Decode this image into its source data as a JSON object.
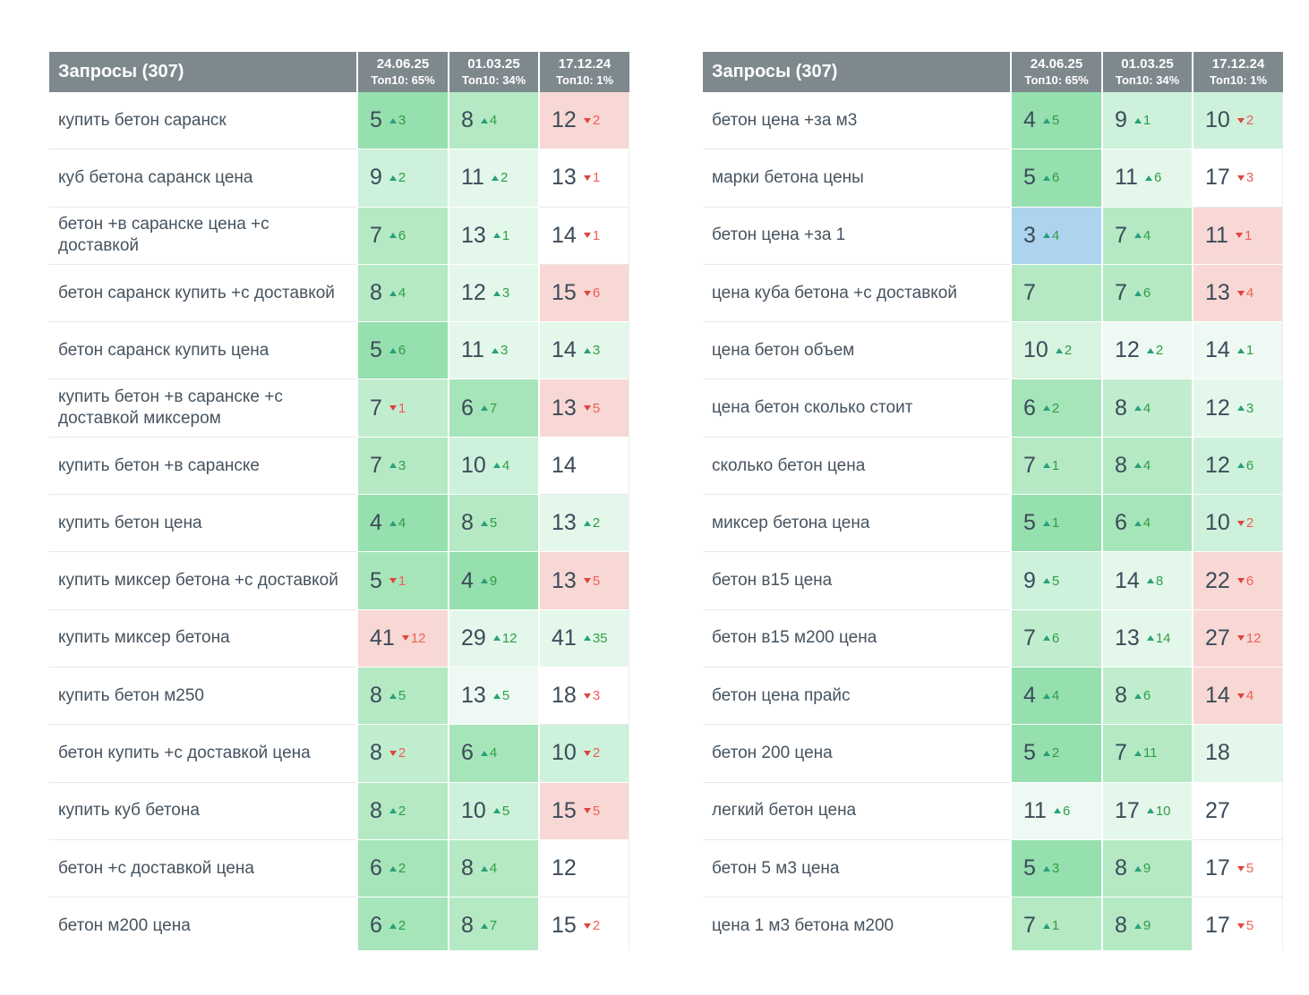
{
  "header": {
    "queries_label": "Запросы (307)",
    "columns": [
      {
        "date": "24.06.25",
        "top10": "Топ10: 65%"
      },
      {
        "date": "01.03.25",
        "top10": "Топ10: 34%"
      },
      {
        "date": "17.12.24",
        "top10": "Топ10: 1%"
      }
    ]
  },
  "colors": {
    "header_bg": "#7e898d",
    "header_text": "#ffffff",
    "query_text": "#46535f",
    "position_text": "#3c4b59",
    "up_arrow": "#28a177",
    "up_change": "#2f9e44",
    "down_arrow": "#e0443e",
    "down_change": "#ee6057",
    "row_border": "#e7e9eb",
    "cell_bg": {
      "blue": "#aed3ee",
      "g1": "#96dfae",
      "g1b": "#a6e5ba",
      "g2": "#b4e9c4",
      "g2l": "#c0edce",
      "g3": "#cdf1da",
      "g3l": "#d8f4e1",
      "g4": "#e4f7eb",
      "g5": "#edf9f2",
      "white": "#ffffff",
      "pink": "#f8d8d4"
    }
  },
  "tables": [
    {
      "rows": [
        {
          "query": "купить бетон саранск",
          "cells": [
            {
              "pos": "5",
              "dir": "up",
              "chg": "3",
              "bg": "g1"
            },
            {
              "pos": "8",
              "dir": "up",
              "chg": "4",
              "bg": "g2"
            },
            {
              "pos": "12",
              "dir": "down",
              "chg": "2",
              "bg": "pink"
            }
          ]
        },
        {
          "query": "куб бетона саранск цена",
          "cells": [
            {
              "pos": "9",
              "dir": "up",
              "chg": "2",
              "bg": "g3"
            },
            {
              "pos": "11",
              "dir": "up",
              "chg": "2",
              "bg": "g4"
            },
            {
              "pos": "13",
              "dir": "down",
              "chg": "1",
              "bg": "white"
            }
          ]
        },
        {
          "query": "бетон +в саранске цена +с доставкой",
          "cells": [
            {
              "pos": "7",
              "dir": "up",
              "chg": "6",
              "bg": "g2"
            },
            {
              "pos": "13",
              "dir": "up",
              "chg": "1",
              "bg": "g4"
            },
            {
              "pos": "14",
              "dir": "down",
              "chg": "1",
              "bg": "white"
            }
          ]
        },
        {
          "query": "бетон саранск купить +с доставкой",
          "cells": [
            {
              "pos": "8",
              "dir": "up",
              "chg": "4",
              "bg": "g2"
            },
            {
              "pos": "12",
              "dir": "up",
              "chg": "3",
              "bg": "g4"
            },
            {
              "pos": "15",
              "dir": "down",
              "chg": "6",
              "bg": "pink"
            }
          ]
        },
        {
          "query": "бетон саранск купить цена",
          "cells": [
            {
              "pos": "5",
              "dir": "up",
              "chg": "6",
              "bg": "g1"
            },
            {
              "pos": "11",
              "dir": "up",
              "chg": "3",
              "bg": "g4"
            },
            {
              "pos": "14",
              "dir": "up",
              "chg": "3",
              "bg": "g4"
            }
          ]
        },
        {
          "query": "купить бетон +в саранске +с доставкой миксером",
          "cells": [
            {
              "pos": "7",
              "dir": "down",
              "chg": "1",
              "bg": "g2l"
            },
            {
              "pos": "6",
              "dir": "up",
              "chg": "7",
              "bg": "g1b"
            },
            {
              "pos": "13",
              "dir": "down",
              "chg": "5",
              "bg": "pink"
            }
          ]
        },
        {
          "query": "купить бетон +в саранске",
          "cells": [
            {
              "pos": "7",
              "dir": "up",
              "chg": "3",
              "bg": "g2"
            },
            {
              "pos": "10",
              "dir": "up",
              "chg": "4",
              "bg": "g3"
            },
            {
              "pos": "14",
              "dir": "",
              "chg": "",
              "bg": "white"
            }
          ]
        },
        {
          "query": "купить бетон цена",
          "cells": [
            {
              "pos": "4",
              "dir": "up",
              "chg": "4",
              "bg": "g1"
            },
            {
              "pos": "8",
              "dir": "up",
              "chg": "5",
              "bg": "g2"
            },
            {
              "pos": "13",
              "dir": "up",
              "chg": "2",
              "bg": "g4"
            }
          ]
        },
        {
          "query": "купить миксер бетона +с доставкой",
          "cells": [
            {
              "pos": "5",
              "dir": "down",
              "chg": "1",
              "bg": "g1b"
            },
            {
              "pos": "4",
              "dir": "up",
              "chg": "9",
              "bg": "g1"
            },
            {
              "pos": "13",
              "dir": "down",
              "chg": "5",
              "bg": "pink"
            }
          ]
        },
        {
          "query": "купить миксер бетона",
          "cells": [
            {
              "pos": "41",
              "dir": "down",
              "chg": "12",
              "bg": "pink"
            },
            {
              "pos": "29",
              "dir": "up",
              "chg": "12",
              "bg": "g4"
            },
            {
              "pos": "41",
              "dir": "up",
              "chg": "35",
              "bg": "g4"
            }
          ]
        },
        {
          "query": "купить бетон м250",
          "cells": [
            {
              "pos": "8",
              "dir": "up",
              "chg": "5",
              "bg": "g2"
            },
            {
              "pos": "13",
              "dir": "up",
              "chg": "5",
              "bg": "g5"
            },
            {
              "pos": "18",
              "dir": "down",
              "chg": "3",
              "bg": "white"
            }
          ]
        },
        {
          "query": "бетон купить +с доставкой цена",
          "cells": [
            {
              "pos": "8",
              "dir": "down",
              "chg": "2",
              "bg": "g2l"
            },
            {
              "pos": "6",
              "dir": "up",
              "chg": "4",
              "bg": "g1b"
            },
            {
              "pos": "10",
              "dir": "down",
              "chg": "2",
              "bg": "g3"
            }
          ]
        },
        {
          "query": "купить куб бетона",
          "cells": [
            {
              "pos": "8",
              "dir": "up",
              "chg": "2",
              "bg": "g2"
            },
            {
              "pos": "10",
              "dir": "up",
              "chg": "5",
              "bg": "g3"
            },
            {
              "pos": "15",
              "dir": "down",
              "chg": "5",
              "bg": "pink"
            }
          ]
        },
        {
          "query": "бетон +с доставкой цена",
          "cells": [
            {
              "pos": "6",
              "dir": "up",
              "chg": "2",
              "bg": "g1b"
            },
            {
              "pos": "8",
              "dir": "up",
              "chg": "4",
              "bg": "g2"
            },
            {
              "pos": "12",
              "dir": "",
              "chg": "",
              "bg": "white"
            }
          ]
        },
        {
          "query": "бетон м200 цена",
          "cells": [
            {
              "pos": "6",
              "dir": "up",
              "chg": "2",
              "bg": "g1b"
            },
            {
              "pos": "8",
              "dir": "up",
              "chg": "7",
              "bg": "g2"
            },
            {
              "pos": "15",
              "dir": "down",
              "chg": "2",
              "bg": "white"
            }
          ]
        }
      ]
    },
    {
      "rows": [
        {
          "query": "бетон цена +за м3",
          "cells": [
            {
              "pos": "4",
              "dir": "up",
              "chg": "5",
              "bg": "g1"
            },
            {
              "pos": "9",
              "dir": "up",
              "chg": "1",
              "bg": "g3"
            },
            {
              "pos": "10",
              "dir": "down",
              "chg": "2",
              "bg": "g3"
            }
          ]
        },
        {
          "query": "марки бетона цены",
          "cells": [
            {
              "pos": "5",
              "dir": "up",
              "chg": "6",
              "bg": "g1"
            },
            {
              "pos": "11",
              "dir": "up",
              "chg": "6",
              "bg": "g4"
            },
            {
              "pos": "17",
              "dir": "down",
              "chg": "3",
              "bg": "white"
            }
          ]
        },
        {
          "query": "бетон цена +за 1",
          "cells": [
            {
              "pos": "3",
              "dir": "up",
              "chg": "4",
              "bg": "blue"
            },
            {
              "pos": "7",
              "dir": "up",
              "chg": "4",
              "bg": "g2"
            },
            {
              "pos": "11",
              "dir": "down",
              "chg": "1",
              "bg": "pink"
            }
          ]
        },
        {
          "query": "цена куба бетона +с доставкой",
          "cells": [
            {
              "pos": "7",
              "dir": "",
              "chg": "",
              "bg": "g2"
            },
            {
              "pos": "7",
              "dir": "up",
              "chg": "6",
              "bg": "g2"
            },
            {
              "pos": "13",
              "dir": "down",
              "chg": "4",
              "bg": "pink"
            }
          ]
        },
        {
          "query": "цена бетон объем",
          "cells": [
            {
              "pos": "10",
              "dir": "up",
              "chg": "2",
              "bg": "g3l"
            },
            {
              "pos": "12",
              "dir": "up",
              "chg": "2",
              "bg": "g5"
            },
            {
              "pos": "14",
              "dir": "up",
              "chg": "1",
              "bg": "g5"
            }
          ]
        },
        {
          "query": "цена бетон сколько стоит",
          "cells": [
            {
              "pos": "6",
              "dir": "up",
              "chg": "2",
              "bg": "g1b"
            },
            {
              "pos": "8",
              "dir": "up",
              "chg": "4",
              "bg": "g2l"
            },
            {
              "pos": "12",
              "dir": "up",
              "chg": "3",
              "bg": "g4"
            }
          ]
        },
        {
          "query": "сколько бетон цена",
          "cells": [
            {
              "pos": "7",
              "dir": "up",
              "chg": "1",
              "bg": "g2"
            },
            {
              "pos": "8",
              "dir": "up",
              "chg": "4",
              "bg": "g2"
            },
            {
              "pos": "12",
              "dir": "up",
              "chg": "6",
              "bg": "g3"
            }
          ]
        },
        {
          "query": "миксер бетона цена",
          "cells": [
            {
              "pos": "5",
              "dir": "up",
              "chg": "1",
              "bg": "g1"
            },
            {
              "pos": "6",
              "dir": "up",
              "chg": "4",
              "bg": "g1b"
            },
            {
              "pos": "10",
              "dir": "down",
              "chg": "2",
              "bg": "g3"
            }
          ]
        },
        {
          "query": "бетон в15 цена",
          "cells": [
            {
              "pos": "9",
              "dir": "up",
              "chg": "5",
              "bg": "g3"
            },
            {
              "pos": "14",
              "dir": "up",
              "chg": "8",
              "bg": "g4"
            },
            {
              "pos": "22",
              "dir": "down",
              "chg": "6",
              "bg": "pink"
            }
          ]
        },
        {
          "query": "бетон в15 м200 цена",
          "cells": [
            {
              "pos": "7",
              "dir": "up",
              "chg": "6",
              "bg": "g2l"
            },
            {
              "pos": "13",
              "dir": "up",
              "chg": "14",
              "bg": "g4"
            },
            {
              "pos": "27",
              "dir": "down",
              "chg": "12",
              "bg": "pink"
            }
          ]
        },
        {
          "query": "бетон цена прайс",
          "cells": [
            {
              "pos": "4",
              "dir": "up",
              "chg": "4",
              "bg": "g1"
            },
            {
              "pos": "8",
              "dir": "up",
              "chg": "6",
              "bg": "g2l"
            },
            {
              "pos": "14",
              "dir": "down",
              "chg": "4",
              "bg": "pink"
            }
          ]
        },
        {
          "query": "бетон 200 цена",
          "cells": [
            {
              "pos": "5",
              "dir": "up",
              "chg": "2",
              "bg": "g1"
            },
            {
              "pos": "7",
              "dir": "up",
              "chg": "11",
              "bg": "g2"
            },
            {
              "pos": "18",
              "dir": "",
              "chg": "",
              "bg": "g4"
            }
          ]
        },
        {
          "query": "легкий бетон цена",
          "cells": [
            {
              "pos": "11",
              "dir": "up",
              "chg": "6",
              "bg": "g5"
            },
            {
              "pos": "17",
              "dir": "up",
              "chg": "10",
              "bg": "g4"
            },
            {
              "pos": "27",
              "dir": "",
              "chg": "",
              "bg": "white"
            }
          ]
        },
        {
          "query": "бетон 5 м3 цена",
          "cells": [
            {
              "pos": "5",
              "dir": "up",
              "chg": "3",
              "bg": "g1"
            },
            {
              "pos": "8",
              "dir": "up",
              "chg": "9",
              "bg": "g2"
            },
            {
              "pos": "17",
              "dir": "down",
              "chg": "5",
              "bg": "white"
            }
          ]
        },
        {
          "query": "цена 1 м3 бетона м200",
          "cells": [
            {
              "pos": "7",
              "dir": "up",
              "chg": "1",
              "bg": "g2"
            },
            {
              "pos": "8",
              "dir": "up",
              "chg": "9",
              "bg": "g2"
            },
            {
              "pos": "17",
              "dir": "down",
              "chg": "5",
              "bg": "white"
            }
          ]
        }
      ]
    }
  ]
}
